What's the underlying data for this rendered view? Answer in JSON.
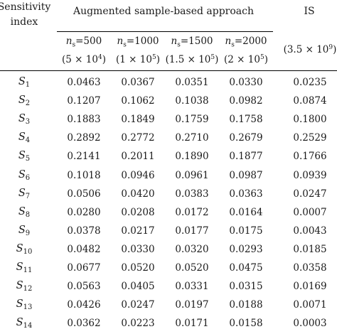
{
  "table": {
    "header": {
      "index_line1": "Sensitivity",
      "index_line2": "index",
      "group": "Augmented sample-based approach",
      "is": "IS",
      "is_sub_base": "(3.5 × 10",
      "is_sub_exp": "9",
      "is_sub_end": ")",
      "columns": [
        {
          "ns_label": "n",
          "ns_sub": "s",
          "ns_value": "=500",
          "base": "(5 × 10",
          "exp": "4",
          "end": ")"
        },
        {
          "ns_label": "n",
          "ns_sub": "s",
          "ns_value": "=1000",
          "base": "(1 × 10",
          "exp": "5",
          "end": ")"
        },
        {
          "ns_label": "n",
          "ns_sub": "s",
          "ns_value": "=1500",
          "base": "(1.5 × 10",
          "exp": "5",
          "end": ")"
        },
        {
          "ns_label": "n",
          "ns_sub": "s",
          "ns_value": "=2000",
          "base": "(2 × 10",
          "exp": "5",
          "end": ")"
        }
      ]
    },
    "rows": [
      {
        "s": "S",
        "i": "1",
        "v": [
          "0.0463",
          "0.0367",
          "0.0351",
          "0.0330",
          "0.0235"
        ]
      },
      {
        "s": "S",
        "i": "2",
        "v": [
          "0.1207",
          "0.1062",
          "0.1038",
          "0.0982",
          "0.0874"
        ]
      },
      {
        "s": "S",
        "i": "3",
        "v": [
          "0.1883",
          "0.1849",
          "0.1759",
          "0.1758",
          "0.1800"
        ]
      },
      {
        "s": "S",
        "i": "4",
        "v": [
          "0.2892",
          "0.2772",
          "0.2710",
          "0.2679",
          "0.2529"
        ]
      },
      {
        "s": "S",
        "i": "5",
        "v": [
          "0.2141",
          "0.2011",
          "0.1890",
          "0.1877",
          "0.1766"
        ]
      },
      {
        "s": "S",
        "i": "6",
        "v": [
          "0.1018",
          "0.0946",
          "0.0961",
          "0.0987",
          "0.0939"
        ]
      },
      {
        "s": "S",
        "i": "7",
        "v": [
          "0.0506",
          "0.0420",
          "0.0383",
          "0.0363",
          "0.0247"
        ]
      },
      {
        "s": "S",
        "i": "8",
        "v": [
          "0.0280",
          "0.0208",
          "0.0172",
          "0.0164",
          "0.0007"
        ]
      },
      {
        "s": "S",
        "i": "9",
        "v": [
          "0.0378",
          "0.0217",
          "0.0177",
          "0.0175",
          "0.0043"
        ]
      },
      {
        "s": "S",
        "i": "10",
        "v": [
          "0.0482",
          "0.0330",
          "0.0320",
          "0.0293",
          "0.0185"
        ]
      },
      {
        "s": "S",
        "i": "11",
        "v": [
          "0.0677",
          "0.0520",
          "0.0520",
          "0.0475",
          "0.0358"
        ]
      },
      {
        "s": "S",
        "i": "12",
        "v": [
          "0.0563",
          "0.0405",
          "0.0331",
          "0.0315",
          "0.0169"
        ]
      },
      {
        "s": "S",
        "i": "13",
        "v": [
          "0.0426",
          "0.0247",
          "0.0197",
          "0.0188",
          "0.0071"
        ]
      },
      {
        "s": "S",
        "i": "14",
        "v": [
          "0.0362",
          "0.0223",
          "0.0171",
          "0.0158",
          "0.0003"
        ]
      }
    ]
  }
}
